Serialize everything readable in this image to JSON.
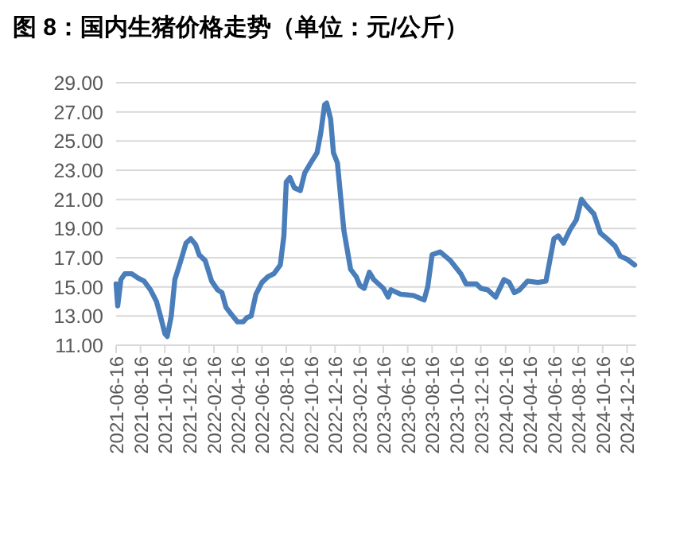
{
  "chart_data": {
    "type": "line",
    "title": "图 8：国内生猪价格走势（单位：元/公斤）",
    "x": [
      "2021-06-16",
      "2021-06-20",
      "2021-06-28",
      "2021-07-08",
      "2021-07-25",
      "2021-08-10",
      "2021-08-25",
      "2021-09-10",
      "2021-09-25",
      "2021-10-05",
      "2021-10-16",
      "2021-10-22",
      "2021-11-01",
      "2021-11-10",
      "2021-11-25",
      "2021-12-08",
      "2021-12-20",
      "2022-01-01",
      "2022-01-10",
      "2022-01-25",
      "2022-02-10",
      "2022-02-25",
      "2022-03-08",
      "2022-03-18",
      "2022-04-01",
      "2022-04-16",
      "2022-04-30",
      "2022-05-10",
      "2022-05-20",
      "2022-06-01",
      "2022-06-16",
      "2022-07-01",
      "2022-07-16",
      "2022-08-01",
      "2022-08-10",
      "2022-08-16",
      "2022-08-25",
      "2022-09-05",
      "2022-09-20",
      "2022-10-01",
      "2022-10-16",
      "2022-11-01",
      "2022-11-10",
      "2022-11-20",
      "2022-11-25",
      "2022-12-05",
      "2022-12-12",
      "2022-12-22",
      "2023-01-07",
      "2023-01-24",
      "2023-02-07",
      "2023-02-16",
      "2023-02-27",
      "2023-03-12",
      "2023-03-23",
      "2023-04-16",
      "2023-04-28",
      "2023-05-05",
      "2023-05-29",
      "2023-07-01",
      "2023-07-27",
      "2023-08-05",
      "2023-08-16",
      "2023-09-05",
      "2023-10-01",
      "2023-10-27",
      "2023-11-09",
      "2023-12-05",
      "2023-12-16",
      "2024-01-02",
      "2024-01-22",
      "2024-02-12",
      "2024-02-25",
      "2024-03-09",
      "2024-03-22",
      "2024-04-11",
      "2024-05-07",
      "2024-05-27",
      "2024-06-16",
      "2024-06-27",
      "2024-07-10",
      "2024-07-26",
      "2024-08-11",
      "2024-08-24",
      "2024-09-04",
      "2024-09-24",
      "2024-10-10",
      "2024-10-27",
      "2024-11-16",
      "2024-11-29",
      "2024-12-16",
      "2025-01-04"
    ],
    "series": [
      {
        "color": "#4a7ebb",
        "values": [
          15.2,
          13.7,
          15.5,
          15.9,
          15.9,
          15.6,
          15.4,
          14.8,
          14.0,
          13.0,
          11.8,
          11.6,
          13.0,
          15.5,
          16.8,
          18.0,
          18.3,
          17.9,
          17.2,
          16.8,
          15.4,
          14.8,
          14.6,
          13.6,
          13.1,
          12.6,
          12.6,
          12.9,
          13.0,
          14.5,
          15.3,
          15.7,
          15.9,
          16.5,
          18.5,
          22.2,
          22.5,
          21.8,
          21.6,
          22.8,
          23.5,
          24.2,
          25.5,
          27.5,
          27.6,
          26.5,
          24.2,
          23.5,
          18.9,
          16.2,
          15.7,
          15.1,
          14.9,
          16.0,
          15.5,
          14.9,
          14.3,
          14.8,
          14.5,
          14.4,
          14.1,
          15.0,
          17.2,
          17.4,
          16.8,
          15.9,
          15.2,
          15.2,
          14.9,
          14.8,
          14.3,
          15.5,
          15.3,
          14.6,
          14.8,
          15.4,
          15.3,
          15.4,
          18.3,
          18.5,
          18.0,
          18.9,
          19.6,
          21.0,
          20.6,
          20.0,
          18.7,
          18.3,
          17.8,
          17.1,
          16.9,
          16.5
        ]
      }
    ],
    "xlim": [
      "2021-06-16",
      "2025-01-08"
    ],
    "xticks": [
      "2021-06-16",
      "2021-08-16",
      "2021-10-16",
      "2021-12-16",
      "2022-02-16",
      "2022-04-16",
      "2022-06-16",
      "2022-08-16",
      "2022-10-16",
      "2022-12-16",
      "2023-02-16",
      "2023-04-16",
      "2023-06-16",
      "2023-08-16",
      "2023-10-16",
      "2023-12-16",
      "2024-02-16",
      "2024-04-16",
      "2024-06-16",
      "2024-08-16",
      "2024-10-16",
      "2024-12-16"
    ],
    "ylim": [
      11,
      29
    ],
    "yticks": [
      {
        "value": 11,
        "label": "11.00"
      },
      {
        "value": 13,
        "label": "13.00"
      },
      {
        "value": 15,
        "label": "15.00"
      },
      {
        "value": 17,
        "label": "17.00"
      },
      {
        "value": 19,
        "label": "19.00"
      },
      {
        "value": 21,
        "label": "21.00"
      },
      {
        "value": 23,
        "label": "23.00"
      },
      {
        "value": 25,
        "label": "25.00"
      },
      {
        "value": 27,
        "label": "27.00"
      },
      {
        "value": 29,
        "label": "29.00"
      }
    ],
    "grid": "y",
    "line_style": "solid"
  }
}
